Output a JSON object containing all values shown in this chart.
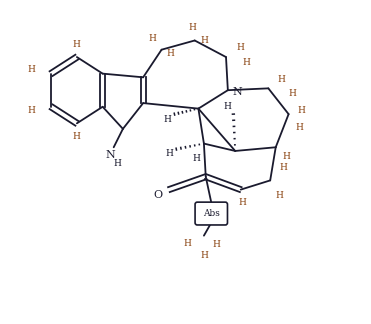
{
  "bg_color": "#ffffff",
  "bond_color": "#1a1a2e",
  "H_color": "#8B4513",
  "figsize": [
    3.71,
    3.24
  ],
  "dpi": 100,
  "xlim": [
    0,
    10
  ],
  "ylim": [
    0,
    8.5
  ]
}
